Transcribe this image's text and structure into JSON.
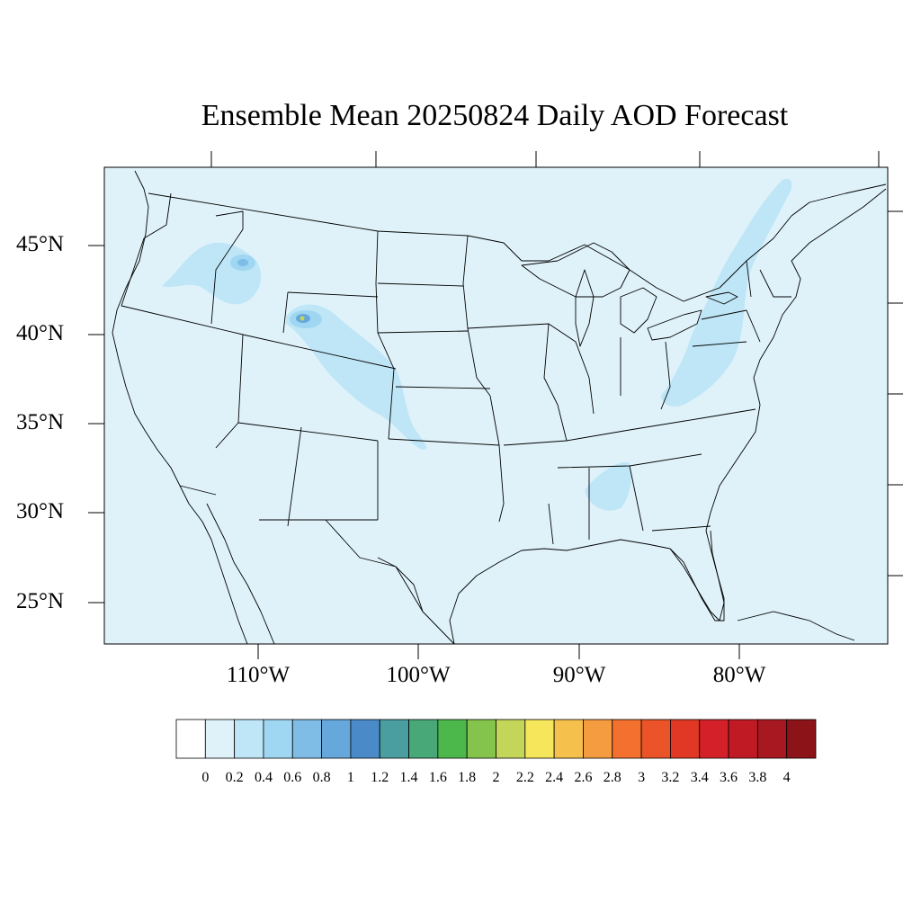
{
  "title": "Ensemble Mean 20250824 Daily AOD Forecast",
  "lat_labels": [
    "45°N",
    "40°N",
    "35°N",
    "30°N",
    "25°N"
  ],
  "lon_labels": [
    "110°W",
    "100°W",
    "90°W",
    "80°W"
  ],
  "colorbar": {
    "labels": [
      "0",
      "0.2",
      "0.4",
      "0.6",
      "0.8",
      "1",
      "1.2",
      "1.4",
      "1.6",
      "1.8",
      "2",
      "2.2",
      "2.4",
      "2.6",
      "2.8",
      "3",
      "3.2",
      "3.4",
      "3.6",
      "3.8",
      "4"
    ],
    "colors": [
      "#ffffff",
      "#dff2fa",
      "#bfe6f7",
      "#9fd6f2",
      "#7fbde6",
      "#66a8dc",
      "#4a8ac8",
      "#4a9ea0",
      "#48a878",
      "#4cb84c",
      "#84c44c",
      "#c4d65a",
      "#f6e65c",
      "#f6c04c",
      "#f69c40",
      "#f4702e",
      "#ea5428",
      "#e03824",
      "#d42028",
      "#c01a24",
      "#a81820",
      "#8c1418"
    ]
  },
  "map": {
    "background_color": "#dff2fa",
    "plumes": [
      {
        "name": "plume-idaho-montana",
        "color": "#bfe6f7"
      },
      {
        "name": "plume-wyoming-colorado",
        "color": "#bfe6f7"
      },
      {
        "name": "plume-appalachia-northeast",
        "color": "#bfe6f7"
      },
      {
        "name": "plume-alabama",
        "color": "#bfe6f7"
      }
    ]
  }
}
